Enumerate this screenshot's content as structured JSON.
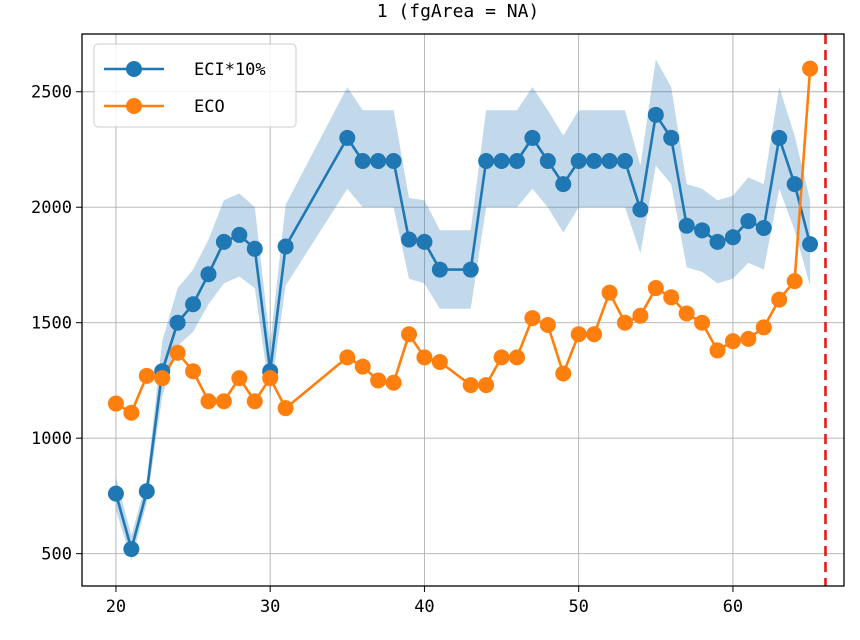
{
  "chart_data": {
    "type": "line",
    "title": "1 (fgArea = NA)",
    "xlabel": "",
    "ylabel": "",
    "xlim": [
      17.8,
      67.2
    ],
    "ylim": [
      360,
      2750
    ],
    "xticks": [
      20,
      30,
      40,
      50,
      60
    ],
    "yticks": [
      500,
      1000,
      1500,
      2000,
      2500
    ],
    "grid": true,
    "legend_position": "top-left",
    "vline": {
      "x": 66,
      "color": "#e41a1c",
      "style": "dashed"
    },
    "series": [
      {
        "name": "ECI*10%",
        "color": "#1f77b4",
        "x": [
          20,
          21,
          22,
          23,
          24,
          25,
          26,
          27,
          28,
          29,
          30,
          31,
          35,
          36,
          37,
          38,
          39,
          40,
          41,
          43,
          44,
          45,
          46,
          47,
          48,
          49,
          50,
          51,
          52,
          53,
          54,
          55,
          56,
          57,
          58,
          59,
          60,
          61,
          62,
          63,
          64,
          65
        ],
        "y": [
          760,
          520,
          770,
          1290,
          1500,
          1580,
          1710,
          1850,
          1880,
          1820,
          1290,
          1830,
          2300,
          2200,
          2200,
          2200,
          1860,
          1850,
          1730,
          1730,
          2200,
          2200,
          2200,
          2300,
          2200,
          2100,
          2200,
          2200,
          2200,
          2200,
          1990,
          2400,
          2300,
          1920,
          1900,
          1850,
          1870,
          1940,
          1910,
          2300,
          2100,
          1840
        ],
        "band_lower": [
          690,
          470,
          720,
          1180,
          1400,
          1460,
          1580,
          1670,
          1700,
          1650,
          1180,
          1660,
          2080,
          2000,
          2000,
          2000,
          1690,
          1670,
          1560,
          1560,
          2000,
          2000,
          2000,
          2080,
          2000,
          1890,
          2000,
          2000,
          2000,
          2000,
          1800,
          2180,
          2100,
          1740,
          1720,
          1670,
          1690,
          1760,
          1730,
          2080,
          1900,
          1660
        ],
        "band_upper": [
          830,
          580,
          820,
          1420,
          1650,
          1730,
          1860,
          2030,
          2060,
          2000,
          1410,
          2010,
          2520,
          2420,
          2420,
          2420,
          2040,
          2030,
          1900,
          1900,
          2420,
          2420,
          2420,
          2520,
          2420,
          2310,
          2420,
          2420,
          2420,
          2420,
          2180,
          2640,
          2520,
          2100,
          2080,
          2030,
          2050,
          2130,
          2100,
          2520,
          2310,
          2030
        ]
      },
      {
        "name": "ECO",
        "color": "#ff7f0e",
        "x": [
          20,
          21,
          22,
          23,
          24,
          25,
          26,
          27,
          28,
          29,
          30,
          31,
          35,
          36,
          37,
          38,
          39,
          40,
          41,
          43,
          44,
          45,
          46,
          47,
          48,
          49,
          50,
          51,
          52,
          53,
          54,
          55,
          56,
          57,
          58,
          59,
          60,
          61,
          62,
          63,
          64,
          65
        ],
        "y": [
          1150,
          1110,
          1270,
          1260,
          1370,
          1290,
          1160,
          1160,
          1260,
          1160,
          1260,
          1130,
          1350,
          1310,
          1250,
          1240,
          1450,
          1350,
          1330,
          1230,
          1230,
          1350,
          1350,
          1520,
          1490,
          1280,
          1450,
          1450,
          1630,
          1500,
          1530,
          1650,
          1610,
          1540,
          1500,
          1380,
          1420,
          1430,
          1480,
          1600,
          1680,
          2600
        ]
      }
    ]
  }
}
